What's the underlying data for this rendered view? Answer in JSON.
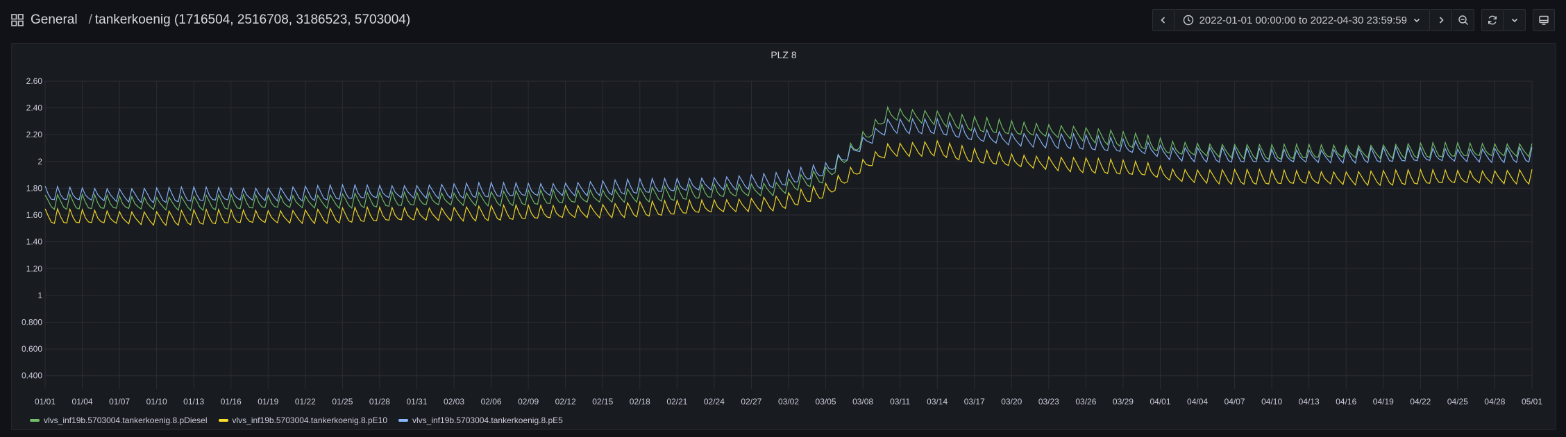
{
  "header": {
    "folder": "General",
    "separator": "/",
    "title": "tankerkoenig (1716504, 2516708, 3186523, 5703004)"
  },
  "toolbar": {
    "time_range": "2022-01-01 00:00:00 to 2022-04-30 23:59:59",
    "icons": [
      "chevron-left-icon",
      "clock-icon",
      "chevron-down-icon",
      "chevron-right-icon",
      "zoom-out-icon",
      "refresh-icon",
      "chevron-down-icon",
      "tv-icon"
    ]
  },
  "panel": {
    "title": "PLZ 8"
  },
  "chart_data": {
    "type": "line",
    "title": "PLZ 8",
    "xlabel": "",
    "ylabel": "",
    "ylim": [
      0.3,
      2.6
    ],
    "yticks": [
      "2.60",
      "2.40",
      "2.20",
      "2",
      "1.80",
      "1.60",
      "1.40",
      "1.20",
      "1",
      "0.800",
      "0.600",
      "0.400"
    ],
    "ytick_values": [
      2.6,
      2.4,
      2.2,
      2.0,
      1.8,
      1.6,
      1.4,
      1.2,
      1.0,
      0.8,
      0.6,
      0.4
    ],
    "x_start": "2022-01-01",
    "x_end": "2022-05-01",
    "xticks": [
      "01/01",
      "01/04",
      "01/07",
      "01/10",
      "01/13",
      "01/16",
      "01/19",
      "01/22",
      "01/25",
      "01/28",
      "01/31",
      "02/03",
      "02/06",
      "02/09",
      "02/12",
      "02/15",
      "02/18",
      "02/21",
      "02/24",
      "02/27",
      "03/02",
      "03/05",
      "03/08",
      "03/11",
      "03/14",
      "03/17",
      "03/20",
      "03/23",
      "03/26",
      "03/29",
      "04/01",
      "04/04",
      "04/07",
      "04/10",
      "04/13",
      "04/16",
      "04/19",
      "04/22",
      "04/25",
      "04/28",
      "05/01"
    ],
    "grid": true,
    "legend_position": "bottom-left",
    "series": [
      {
        "name": "vlvs_inf19b.5703004.tankerkoenig.8.pDiesel",
        "color": "#73bf69",
        "x": [
          "2022-01-01",
          "2022-01-10",
          "2022-01-20",
          "2022-02-01",
          "2022-02-10",
          "2022-02-20",
          "2022-03-01",
          "2022-03-05",
          "2022-03-08",
          "2022-03-10",
          "2022-03-14",
          "2022-03-17",
          "2022-03-20",
          "2022-03-25",
          "2022-03-31",
          "2022-04-02",
          "2022-04-10",
          "2022-04-20",
          "2022-04-30"
        ],
        "values": [
          1.68,
          1.67,
          1.68,
          1.7,
          1.71,
          1.74,
          1.78,
          1.88,
          2.15,
          2.34,
          2.31,
          2.26,
          2.23,
          2.2,
          2.12,
          2.08,
          2.05,
          2.06,
          2.07
        ]
      },
      {
        "name": "vlvs_inf19b.5703004.tankerkoenig.8.pE10",
        "color": "#fade2a",
        "x": [
          "2022-01-01",
          "2022-01-10",
          "2022-01-20",
          "2022-02-01",
          "2022-02-10",
          "2022-02-20",
          "2022-03-01",
          "2022-03-05",
          "2022-03-08",
          "2022-03-10",
          "2022-03-14",
          "2022-03-17",
          "2022-03-20",
          "2022-03-25",
          "2022-03-31",
          "2022-04-02",
          "2022-04-10",
          "2022-04-20",
          "2022-04-30"
        ],
        "values": [
          1.57,
          1.56,
          1.57,
          1.59,
          1.6,
          1.63,
          1.67,
          1.76,
          1.95,
          2.07,
          2.08,
          2.02,
          1.99,
          1.96,
          1.92,
          1.88,
          1.86,
          1.86,
          1.87
        ]
      },
      {
        "name": "vlvs_inf19b.5703004.tankerkoenig.8.pE5",
        "color": "#8ab8ff",
        "x": [
          "2022-01-01",
          "2022-01-10",
          "2022-01-20",
          "2022-02-01",
          "2022-02-10",
          "2022-02-20",
          "2022-03-01",
          "2022-03-05",
          "2022-03-08",
          "2022-03-10",
          "2022-03-14",
          "2022-03-17",
          "2022-03-20",
          "2022-03-25",
          "2022-03-31",
          "2022-04-02",
          "2022-04-10",
          "2022-04-20",
          "2022-04-30"
        ],
        "values": [
          1.74,
          1.73,
          1.74,
          1.76,
          1.77,
          1.8,
          1.84,
          1.92,
          2.12,
          2.25,
          2.24,
          2.18,
          2.15,
          2.13,
          2.08,
          2.04,
          2.02,
          2.03,
          2.03
        ]
      }
    ]
  }
}
